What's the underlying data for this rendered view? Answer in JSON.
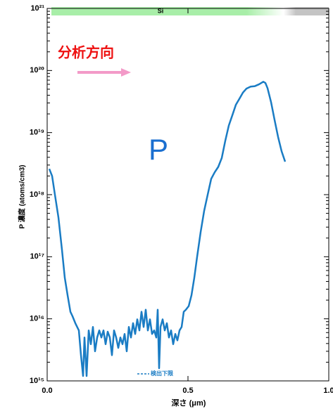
{
  "chart_data": {
    "type": "line",
    "x_label": "深さ (μm)",
    "y_label": "P 濃度 (atoms/cm3)",
    "band_label": "Si",
    "direction_label": "分析方向",
    "element_label": "P",
    "detection_limit_label": "検出下限",
    "log_y": true,
    "xlim": [
      0,
      1
    ],
    "ylim": [
      1000000000000000.0,
      1e+21
    ],
    "xticks": [
      {
        "value": 0,
        "label": "0.0"
      },
      {
        "value": 0.5,
        "label": "0.5"
      },
      {
        "value": 1,
        "label": "1.0"
      }
    ],
    "yticks": [
      {
        "value": 1000000000000000.0,
        "label": "10¹⁵"
      },
      {
        "value": 1e+16,
        "label": "10¹⁶"
      },
      {
        "value": 1e+17,
        "label": "10¹⁷"
      },
      {
        "value": 1e+18,
        "label": "10¹⁸"
      },
      {
        "value": 1e+19,
        "label": "10¹⁹"
      },
      {
        "value": 1e+20,
        "label": "10²⁰"
      },
      {
        "value": 1e+21,
        "label": "10²¹"
      }
    ],
    "x": [
      0.0075,
      0.0175,
      0.0275,
      0.04,
      0.0525,
      0.0625,
      0.0725,
      0.0825,
      0.09,
      0.1,
      0.1125,
      0.12,
      0.1275,
      0.1325,
      0.14,
      0.1475,
      0.155,
      0.1625,
      0.17,
      0.1775,
      0.185,
      0.1925,
      0.2,
      0.2075,
      0.215,
      0.2225,
      0.23,
      0.2375,
      0.245,
      0.2525,
      0.26,
      0.2675,
      0.275,
      0.2825,
      0.29,
      0.2975,
      0.305,
      0.3125,
      0.32,
      0.3275,
      0.335,
      0.3425,
      0.35,
      0.3575,
      0.365,
      0.3725,
      0.38,
      0.3875,
      0.3925,
      0.3975,
      0.4025,
      0.41,
      0.4175,
      0.425,
      0.4325,
      0.44,
      0.4475,
      0.455,
      0.4625,
      0.47,
      0.4775,
      0.485,
      0.4925,
      0.5025,
      0.5125,
      0.5225,
      0.5325,
      0.545,
      0.5575,
      0.57,
      0.5825,
      0.595,
      0.6075,
      0.62,
      0.6325,
      0.645,
      0.6575,
      0.67,
      0.6825,
      0.695,
      0.7075,
      0.7225,
      0.7375,
      0.7525,
      0.7675,
      0.775,
      0.7825,
      0.795,
      0.8075,
      0.82,
      0.8325,
      0.845
    ],
    "series": [
      {
        "color": "#1a7cc4",
        "values": [
          2.6e+18,
          2e+18,
          1e+18,
          4.3e+17,
          1.3e+17,
          4.6e+16,
          2.4e+16,
          1.3e+16,
          1.1e+16,
          8500000000000000.0,
          6500000000000000.0,
          2600000000000000.0,
          1200000000000000.0,
          5000000000000000.0,
          1200000000000000.0,
          6500000000000000.0,
          3900000000000000.0,
          7400000000000000.0,
          3000000000000000.0,
          5000000000000000.0,
          6500000000000000.0,
          5000000000000000.0,
          6500000000000000.0,
          3900000000000000.0,
          6200000000000000.0,
          5000000000000000.0,
          2600000000000000.0,
          6500000000000000.0,
          5000000000000000.0,
          3400000000000000.0,
          5000000000000000.0,
          3900000000000000.0,
          5700000000000000.0,
          3000000000000000.0,
          7400000000000000.0,
          5000000000000000.0,
          8500000000000000.0,
          5700000000000000.0,
          9800000000000000.0,
          6500000000000000.0,
          1.3e+16,
          7400000000000000.0,
          1.4e+16,
          6500000000000000.0,
          9800000000000000.0,
          5700000000000000.0,
          6500000000000000.0,
          5000000000000000.0,
          1.4e+16,
          1600000000000000.0,
          7400000000000000.0,
          9800000000000000.0,
          6500000000000000.0,
          8500000000000000.0,
          5000000000000000.0,
          6500000000000000.0,
          3900000000000000.0,
          5700000000000000.0,
          4500000000000000.0,
          6500000000000000.0,
          7400000000000000.0,
          1.3e+16,
          1.4e+16,
          1.6e+16,
          2.4e+16,
          4.6e+16,
          1e+17,
          2.5e+17,
          5.5e+17,
          1e+18,
          1.8e+18,
          2.3e+18,
          2.8e+18,
          3.9e+18,
          7.4e+18,
          1.3e+19,
          1.9e+19,
          2.8e+19,
          3.5e+19,
          4.4e+19,
          5.1e+19,
          5.5e+19,
          5.6e+19,
          6e+19,
          6.6e+19,
          6.3e+19,
          5.2e+19,
          3.1e+19,
          1.6e+19,
          8.5e+18,
          5e+18,
          3.4e+18
        ]
      }
    ]
  }
}
